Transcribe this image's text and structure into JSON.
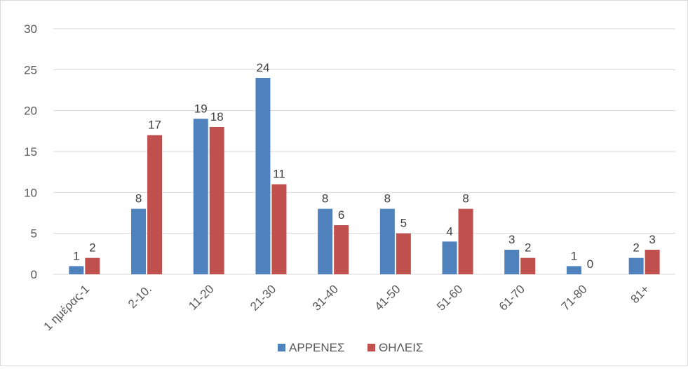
{
  "chart_data": {
    "type": "bar",
    "categories": [
      "1 ημέρας-1",
      "2-10.",
      "11-20",
      "21-30",
      "31-40",
      "41-50",
      "51-60",
      "61-70",
      "71-80",
      "81+"
    ],
    "series": [
      {
        "name": "ΑΡΡΕΝΕΣ",
        "color": "#4f81bd",
        "values": [
          1,
          8,
          19,
          24,
          8,
          8,
          4,
          3,
          1,
          2
        ]
      },
      {
        "name": "ΘΗΛΕΙΣ",
        "color": "#c0504d",
        "values": [
          2,
          17,
          18,
          11,
          6,
          5,
          8,
          2,
          0,
          3
        ]
      }
    ],
    "ylim": [
      0,
      30
    ],
    "yticks": [
      0,
      5,
      10,
      15,
      20,
      25,
      30
    ],
    "grid": true,
    "legend": "bottom",
    "data_labels": true
  }
}
